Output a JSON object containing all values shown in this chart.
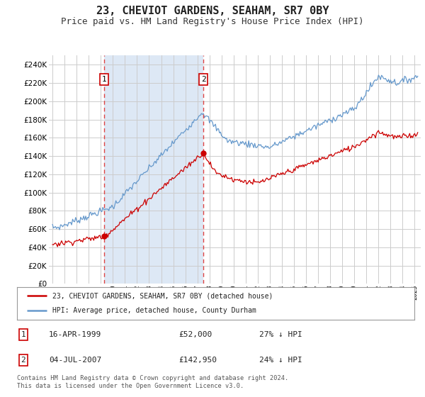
{
  "title": "23, CHEVIOT GARDENS, SEAHAM, SR7 0BY",
  "subtitle": "Price paid vs. HM Land Registry's House Price Index (HPI)",
  "title_fontsize": 11,
  "subtitle_fontsize": 9,
  "ylim": [
    0,
    250000
  ],
  "yticks": [
    0,
    20000,
    40000,
    60000,
    80000,
    100000,
    120000,
    140000,
    160000,
    180000,
    200000,
    220000,
    240000
  ],
  "xlim_start": 1994.7,
  "xlim_end": 2025.5,
  "background_color": "#ffffff",
  "plot_bg_color": "#ffffff",
  "grid_color": "#cccccc",
  "shade_color": "#dde8f5",
  "red_line_color": "#cc0000",
  "blue_line_color": "#6699cc",
  "sale1_date_x": 1999.29,
  "sale1_price": 52000,
  "sale2_date_x": 2007.5,
  "sale2_price": 142950,
  "legend_label_red": "23, CHEVIOT GARDENS, SEAHAM, SR7 0BY (detached house)",
  "legend_label_blue": "HPI: Average price, detached house, County Durham",
  "footnote": "Contains HM Land Registry data © Crown copyright and database right 2024.\nThis data is licensed under the Open Government Licence v3.0.",
  "table_row1": [
    "1",
    "16-APR-1999",
    "£52,000",
    "27% ↓ HPI"
  ],
  "table_row2": [
    "2",
    "04-JUL-2007",
    "£142,950",
    "24% ↓ HPI"
  ]
}
